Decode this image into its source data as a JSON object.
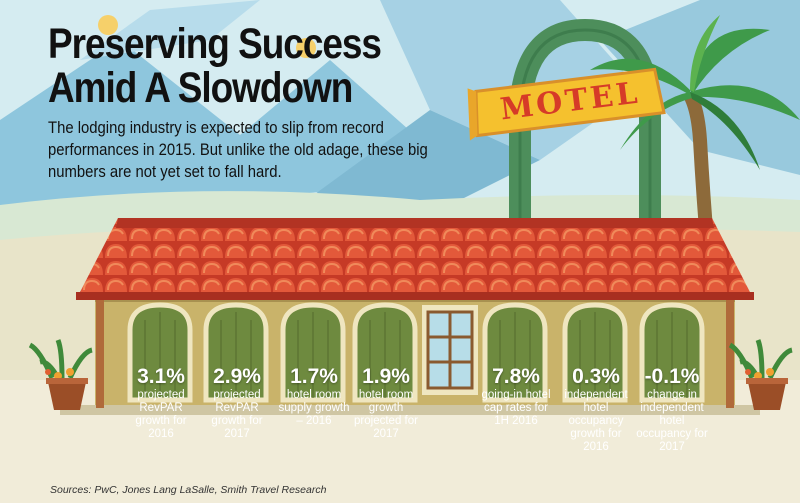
{
  "header": {
    "title": "Preserving Success Amid A Slowdown",
    "subtitle": "The lodging industry is expected to slip from record performances in 2015. But unlike the old adage, these big numbers are not yet set to fall hard."
  },
  "sign": {
    "text": "MOTEL"
  },
  "stats": [
    {
      "value": "3.1%",
      "label": "projected RevPAR growth for 2016"
    },
    {
      "value": "2.9%",
      "label": "projected RevPAR growth for 2017"
    },
    {
      "value": "1.7%",
      "label": "hotel room supply growth – 2016"
    },
    {
      "value": "1.9%",
      "label": "hotel room growth projected for 2017"
    },
    {
      "value": "7.8%",
      "label": "going-in hotel cap rates for 1H 2016"
    },
    {
      "value": "0.3%",
      "label": "independent hotel occupancy growth for 2016"
    },
    {
      "value": "-0.1%",
      "label": "change in independent hotel occupancy for 2017"
    }
  ],
  "footer": {
    "source": "Sources: PwC, Jones Lang LaSalle, Smith Travel Research"
  },
  "colors": {
    "sky": "#d8eef3",
    "roof_tile": "#d9472f",
    "roof_tile_light": "#e8663f",
    "door_green": "#6e8a3f",
    "wall": "#c9b36a",
    "sign_yellow": "#f5c12e",
    "sign_arch": "#4d8e5b",
    "palm_green": "#3f9a4a",
    "pot_brown": "#9b4e27"
  }
}
